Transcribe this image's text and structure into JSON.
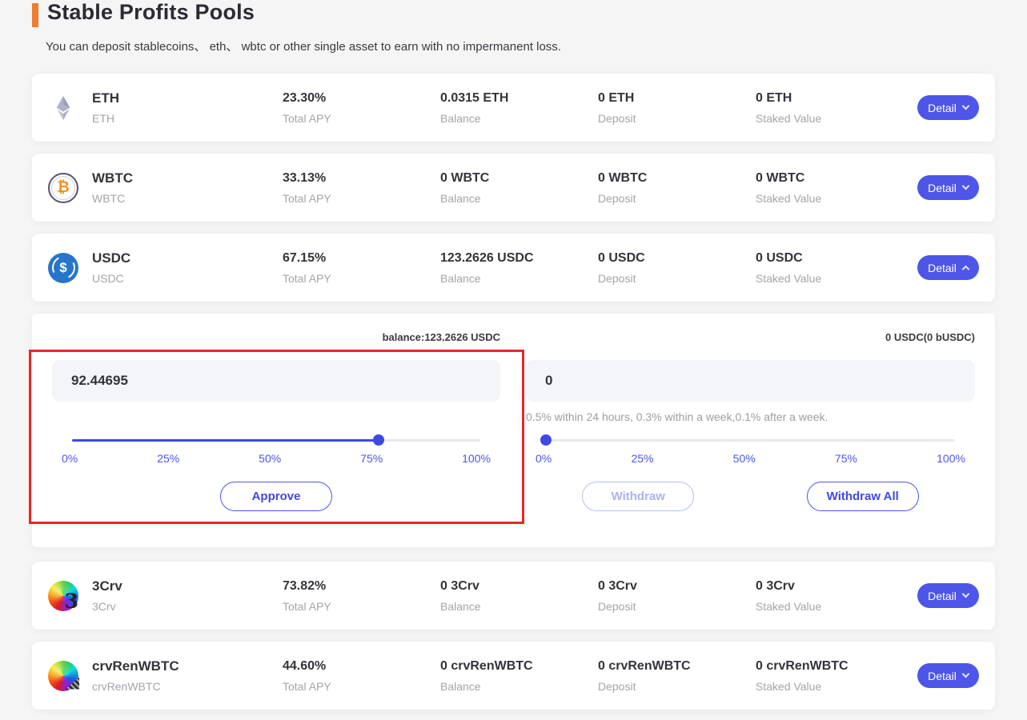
{
  "page": {
    "title": "Stable Profits Pools",
    "subtitle": "You can deposit stablecoins、 eth、 wbtc or other single asset to earn with no impermanent loss.",
    "accent_color": "#ee7c2f",
    "brand_color": "#4d56e8",
    "annotation_color": "#e8262a"
  },
  "pools": [
    {
      "name": "ETH",
      "symbol": "ETH",
      "icon": "eth",
      "expanded": false,
      "detail_label": "Detail",
      "stats": [
        {
          "value": "23.30%",
          "label": "Total APY"
        },
        {
          "value": "0.0315 ETH",
          "label": "Balance"
        },
        {
          "value": "0 ETH",
          "label": "Deposit"
        },
        {
          "value": "0 ETH",
          "label": "Staked Value"
        }
      ]
    },
    {
      "name": "WBTC",
      "symbol": "WBTC",
      "icon": "wbtc",
      "expanded": false,
      "detail_label": "Detail",
      "stats": [
        {
          "value": "33.13%",
          "label": "Total APY"
        },
        {
          "value": "0 WBTC",
          "label": "Balance"
        },
        {
          "value": "0 WBTC",
          "label": "Deposit"
        },
        {
          "value": "0 WBTC",
          "label": "Staked Value"
        }
      ]
    },
    {
      "name": "USDC",
      "symbol": "USDC",
      "icon": "usdc",
      "expanded": true,
      "detail_label": "Detail",
      "stats": [
        {
          "value": "67.15%",
          "label": "Total APY"
        },
        {
          "value": "123.2626 USDC",
          "label": "Balance"
        },
        {
          "value": "0 USDC",
          "label": "Deposit"
        },
        {
          "value": "0 USDC",
          "label": "Staked Value"
        }
      ]
    },
    {
      "name": "3Crv",
      "symbol": "3Crv",
      "icon": "3crv",
      "expanded": false,
      "detail_label": "Detail",
      "stats": [
        {
          "value": "73.82%",
          "label": "Total APY"
        },
        {
          "value": "0 3Crv",
          "label": "Balance"
        },
        {
          "value": "0 3Crv",
          "label": "Deposit"
        },
        {
          "value": "0 3Crv",
          "label": "Staked Value"
        }
      ]
    },
    {
      "name": "crvRenWBTC",
      "symbol": "crvRenWBTC",
      "icon": "crvrenwbtc",
      "expanded": false,
      "detail_label": "Detail",
      "stats": [
        {
          "value": "44.60%",
          "label": "Total APY"
        },
        {
          "value": "0 crvRenWBTC",
          "label": "Balance"
        },
        {
          "value": "0 crvRenWBTC",
          "label": "Deposit"
        },
        {
          "value": "0 crvRenWBTC",
          "label": "Staked Value"
        }
      ]
    }
  ],
  "expanded_panel": {
    "deposit": {
      "balance_label": "balance:123.2626 USDC",
      "input_value": "92.44695",
      "slider_percent": 75,
      "slider_labels": [
        "0%",
        "25%",
        "50%",
        "75%",
        "100%"
      ],
      "approve_label": "Approve"
    },
    "withdraw": {
      "balance_label": "0 USDC(0 bUSDC)",
      "input_value": "0",
      "note": "0.5% within 24 hours, 0.3% within a week,0.1% after a week.",
      "slider_percent": 0,
      "slider_labels": [
        "0%",
        "25%",
        "50%",
        "75%",
        "100%"
      ],
      "withdraw_label": "Withdraw",
      "withdraw_all_label": "Withdraw All"
    }
  }
}
